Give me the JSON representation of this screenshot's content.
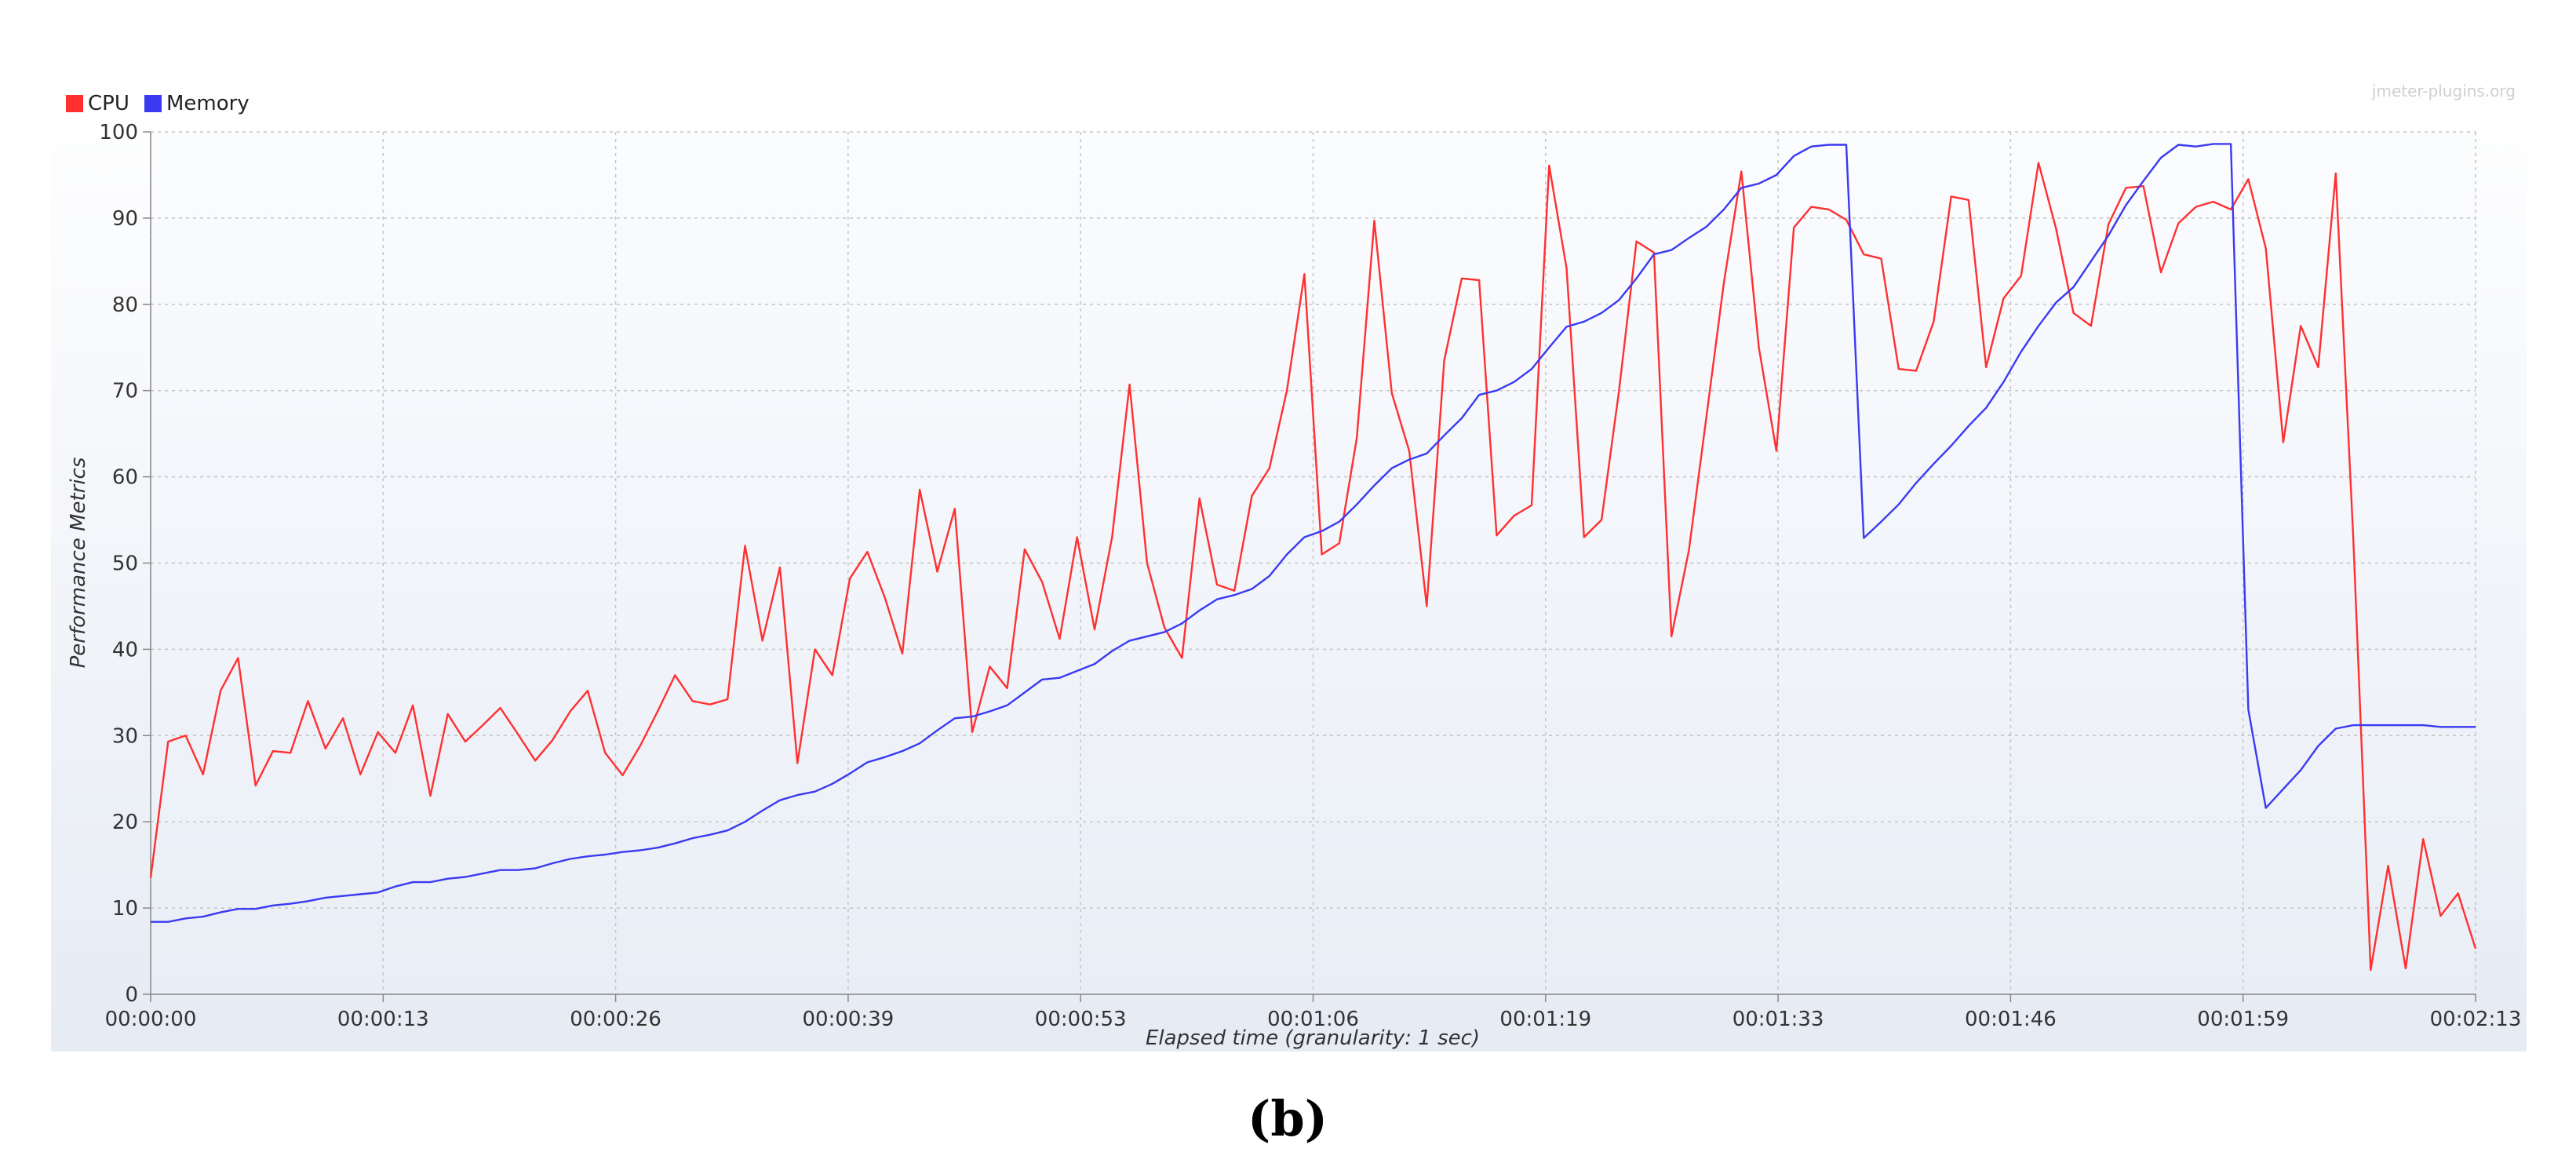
{
  "watermark": "jmeter-plugins.org",
  "caption": "(b)",
  "chart_data": {
    "type": "line",
    "title": "",
    "xlabel": "Elapsed time (granularity: 1 sec)",
    "ylabel": "Performance Metrics",
    "xlim": [
      0,
      133
    ],
    "ylim": [
      0,
      100
    ],
    "x_ticks": [
      {
        "value": 0,
        "label": "00:00:00"
      },
      {
        "value": 13.3,
        "label": "00:00:13"
      },
      {
        "value": 26.6,
        "label": "00:00:26"
      },
      {
        "value": 39.9,
        "label": "00:00:39"
      },
      {
        "value": 53.2,
        "label": "00:00:53"
      },
      {
        "value": 66.5,
        "label": "00:01:06"
      },
      {
        "value": 79.8,
        "label": "00:01:19"
      },
      {
        "value": 93.1,
        "label": "00:01:33"
      },
      {
        "value": 106.4,
        "label": "00:01:46"
      },
      {
        "value": 119.7,
        "label": "00:01:59"
      },
      {
        "value": 133,
        "label": "00:02:13"
      }
    ],
    "y_ticks": [
      "0",
      "10",
      "20",
      "30",
      "40",
      "50",
      "60",
      "70",
      "80",
      "90",
      "100"
    ],
    "grid": true,
    "legend_position": "top-left",
    "colors": {
      "CPU": "#ff3030",
      "Memory": "#3a3af0"
    },
    "series": [
      {
        "name": "CPU",
        "points": [
          [
            0,
            13.5
          ],
          [
            1,
            29.3
          ],
          [
            2,
            30
          ],
          [
            3,
            25.5
          ],
          [
            4,
            35.2
          ],
          [
            5,
            39
          ],
          [
            6,
            24.2
          ],
          [
            7,
            28.2
          ],
          [
            8,
            28
          ],
          [
            9,
            34
          ],
          [
            10,
            28.5
          ],
          [
            11,
            32
          ],
          [
            12,
            25.5
          ],
          [
            13,
            30.4
          ],
          [
            14,
            28
          ],
          [
            15,
            33.5
          ],
          [
            16,
            23
          ],
          [
            17,
            32.5
          ],
          [
            18,
            29.3
          ],
          [
            19,
            31.2
          ],
          [
            20,
            33.2
          ],
          [
            21,
            30.2
          ],
          [
            22,
            27.1
          ],
          [
            23,
            29.5
          ],
          [
            24,
            32.8
          ],
          [
            25,
            35.2
          ],
          [
            26,
            28
          ],
          [
            27,
            25.4
          ],
          [
            28,
            28.8
          ],
          [
            29,
            32.8
          ],
          [
            30,
            37
          ],
          [
            31,
            34
          ],
          [
            32,
            33.6
          ],
          [
            33,
            34.2
          ],
          [
            34,
            52
          ],
          [
            35,
            41
          ],
          [
            36,
            49.5
          ],
          [
            37,
            26.8
          ],
          [
            38,
            40
          ],
          [
            39,
            37
          ],
          [
            40,
            48.2
          ],
          [
            41,
            51.3
          ],
          [
            42,
            46
          ],
          [
            43,
            39.5
          ],
          [
            44,
            58.5
          ],
          [
            45,
            49
          ],
          [
            46,
            56.3
          ],
          [
            47,
            30.4
          ],
          [
            48,
            38
          ],
          [
            49,
            35.5
          ],
          [
            50,
            51.6
          ],
          [
            51,
            47.8
          ],
          [
            52,
            41.2
          ],
          [
            53,
            53
          ],
          [
            54,
            42.3
          ],
          [
            55,
            53
          ],
          [
            56,
            70.7
          ],
          [
            57,
            50
          ],
          [
            58,
            42.5
          ],
          [
            59,
            39
          ],
          [
            60,
            57.5
          ],
          [
            61,
            47.5
          ],
          [
            62,
            46.8
          ],
          [
            63,
            57.8
          ],
          [
            64,
            61
          ],
          [
            65,
            70
          ],
          [
            66,
            83.5
          ],
          [
            67,
            51
          ],
          [
            68,
            52.3
          ],
          [
            69,
            64.5
          ],
          [
            70,
            89.7
          ],
          [
            71,
            69.7
          ],
          [
            72,
            63
          ],
          [
            73,
            45
          ],
          [
            74,
            73.5
          ],
          [
            75,
            83
          ],
          [
            76,
            82.8
          ],
          [
            77,
            53.2
          ],
          [
            78,
            55.5
          ],
          [
            79,
            56.7
          ],
          [
            80,
            96.1
          ],
          [
            81,
            84.2
          ],
          [
            82,
            53
          ],
          [
            83,
            55
          ],
          [
            84,
            70
          ],
          [
            85,
            87.3
          ],
          [
            86,
            86
          ],
          [
            87,
            41.5
          ],
          [
            88,
            51.5
          ],
          [
            89,
            67
          ],
          [
            90,
            82.5
          ],
          [
            91,
            95.4
          ],
          [
            92,
            75
          ],
          [
            93,
            63
          ],
          [
            94,
            88.9
          ],
          [
            95,
            91.3
          ],
          [
            96,
            91
          ],
          [
            97,
            89.8
          ],
          [
            98,
            85.8
          ],
          [
            99,
            85.3
          ],
          [
            100,
            72.5
          ],
          [
            101,
            72.3
          ],
          [
            102,
            78
          ],
          [
            103,
            92.5
          ],
          [
            104,
            92.1
          ],
          [
            105,
            72.7
          ],
          [
            106,
            80.7
          ],
          [
            107,
            83.3
          ],
          [
            108,
            96.4
          ],
          [
            109,
            88.8
          ],
          [
            110,
            79
          ],
          [
            111,
            77.5
          ],
          [
            112,
            89.3
          ],
          [
            113,
            93.5
          ],
          [
            114,
            93.7
          ],
          [
            115,
            83.7
          ],
          [
            116,
            89.4
          ],
          [
            117,
            91.3
          ],
          [
            118,
            91.9
          ],
          [
            119,
            91
          ],
          [
            120,
            94.5
          ],
          [
            121,
            86.5
          ],
          [
            122,
            64
          ],
          [
            123,
            77.5
          ],
          [
            124,
            72.7
          ],
          [
            125,
            95.2
          ],
          [
            126,
            53
          ],
          [
            127,
            2.8
          ],
          [
            128,
            14.9
          ],
          [
            129,
            3
          ],
          [
            130,
            18
          ],
          [
            131,
            9.1
          ],
          [
            132,
            11.7
          ],
          [
            133,
            5.3
          ]
        ]
      },
      {
        "name": "Memory",
        "points": [
          [
            0,
            8.4
          ],
          [
            1,
            8.4
          ],
          [
            2,
            8.8
          ],
          [
            3,
            9
          ],
          [
            4,
            9.5
          ],
          [
            5,
            9.9
          ],
          [
            6,
            9.9
          ],
          [
            7,
            10.3
          ],
          [
            8,
            10.5
          ],
          [
            9,
            10.8
          ],
          [
            10,
            11.2
          ],
          [
            11,
            11.4
          ],
          [
            12,
            11.6
          ],
          [
            13,
            11.8
          ],
          [
            14,
            12.5
          ],
          [
            15,
            13
          ],
          [
            16,
            13
          ],
          [
            17,
            13.4
          ],
          [
            18,
            13.6
          ],
          [
            19,
            14
          ],
          [
            20,
            14.4
          ],
          [
            21,
            14.4
          ],
          [
            22,
            14.6
          ],
          [
            23,
            15.2
          ],
          [
            24,
            15.7
          ],
          [
            25,
            16
          ],
          [
            26,
            16.2
          ],
          [
            27,
            16.5
          ],
          [
            28,
            16.7
          ],
          [
            29,
            17
          ],
          [
            30,
            17.5
          ],
          [
            31,
            18.1
          ],
          [
            32,
            18.5
          ],
          [
            33,
            19
          ],
          [
            34,
            20
          ],
          [
            35,
            21.3
          ],
          [
            36,
            22.5
          ],
          [
            37,
            23.1
          ],
          [
            38,
            23.5
          ],
          [
            39,
            24.4
          ],
          [
            40,
            25.6
          ],
          [
            41,
            26.9
          ],
          [
            42,
            27.5
          ],
          [
            43,
            28.2
          ],
          [
            44,
            29.1
          ],
          [
            45,
            30.6
          ],
          [
            46,
            32
          ],
          [
            47,
            32.2
          ],
          [
            48,
            32.8
          ],
          [
            49,
            33.5
          ],
          [
            50,
            35
          ],
          [
            51,
            36.5
          ],
          [
            52,
            36.7
          ],
          [
            53,
            37.5
          ],
          [
            54,
            38.3
          ],
          [
            55,
            39.8
          ],
          [
            56,
            41
          ],
          [
            57,
            41.5
          ],
          [
            58,
            42
          ],
          [
            59,
            43
          ],
          [
            60,
            44.5
          ],
          [
            61,
            45.8
          ],
          [
            62,
            46.3
          ],
          [
            63,
            47
          ],
          [
            64,
            48.5
          ],
          [
            65,
            51
          ],
          [
            66,
            53
          ],
          [
            67,
            53.7
          ],
          [
            68,
            54.8
          ],
          [
            69,
            56.8
          ],
          [
            70,
            59
          ],
          [
            71,
            61
          ],
          [
            72,
            62
          ],
          [
            73,
            62.7
          ],
          [
            74,
            64.8
          ],
          [
            75,
            66.8
          ],
          [
            76,
            69.5
          ],
          [
            77,
            70
          ],
          [
            78,
            71
          ],
          [
            79,
            72.5
          ],
          [
            80,
            75
          ],
          [
            81,
            77.4
          ],
          [
            82,
            78
          ],
          [
            83,
            79
          ],
          [
            84,
            80.5
          ],
          [
            85,
            83
          ],
          [
            86,
            85.8
          ],
          [
            87,
            86.3
          ],
          [
            88,
            87.7
          ],
          [
            89,
            89
          ],
          [
            90,
            91
          ],
          [
            91,
            93.5
          ],
          [
            92,
            94
          ],
          [
            93,
            95
          ],
          [
            94,
            97.2
          ],
          [
            95,
            98.3
          ],
          [
            96,
            98.5
          ],
          [
            97,
            98.5
          ],
          [
            98,
            52.9
          ],
          [
            99,
            54.8
          ],
          [
            100,
            56.8
          ],
          [
            101,
            59.3
          ],
          [
            102,
            61.5
          ],
          [
            103,
            63.6
          ],
          [
            104,
            65.9
          ],
          [
            105,
            68
          ],
          [
            106,
            71
          ],
          [
            107,
            74.5
          ],
          [
            108,
            77.5
          ],
          [
            109,
            80.2
          ],
          [
            110,
            82
          ],
          [
            111,
            85
          ],
          [
            112,
            88
          ],
          [
            113,
            91.5
          ],
          [
            114,
            94.3
          ],
          [
            115,
            97
          ],
          [
            116,
            98.5
          ],
          [
            117,
            98.3
          ],
          [
            118,
            98.6
          ],
          [
            119,
            98.6
          ],
          [
            120,
            33
          ],
          [
            121,
            21.6
          ],
          [
            122,
            23.8
          ],
          [
            123,
            26
          ],
          [
            124,
            28.8
          ],
          [
            125,
            30.8
          ],
          [
            126,
            31.2
          ],
          [
            127,
            31.2
          ],
          [
            128,
            31.2
          ],
          [
            129,
            31.2
          ],
          [
            130,
            31.2
          ],
          [
            131,
            31
          ],
          [
            132,
            31
          ],
          [
            133,
            31
          ]
        ]
      }
    ]
  }
}
